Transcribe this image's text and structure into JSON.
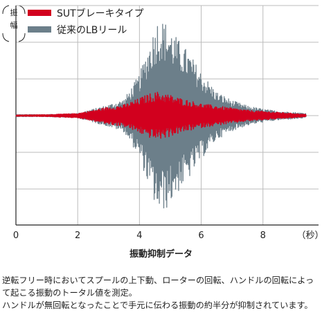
{
  "chart_data": {
    "type": "line",
    "ylabel": "（振幅）",
    "xlabel": "（秒）",
    "xlim": [
      0,
      9.8
    ],
    "xticks": [
      "0",
      "2",
      "4",
      "6",
      "8"
    ],
    "grid": true,
    "legend_position": "top-left",
    "series": [
      {
        "name": "従来のLBリール",
        "color": "#6c7f8a",
        "envelope_t": [
          0,
          1.0,
          2.0,
          2.5,
          3.0,
          3.5,
          4.0,
          4.3,
          4.6,
          4.9,
          5.2,
          5.6,
          6.0,
          6.5,
          7.0,
          7.5,
          8.0,
          8.5,
          9.0,
          9.4
        ],
        "envelope_amplitude": [
          0.01,
          0.01,
          0.02,
          0.06,
          0.1,
          0.15,
          0.38,
          0.65,
          0.9,
          0.85,
          0.72,
          0.58,
          0.4,
          0.22,
          0.14,
          0.09,
          0.06,
          0.04,
          0.03,
          0.02
        ]
      },
      {
        "name": "SUTブレーキタイプ",
        "color": "#d2001e",
        "envelope_t": [
          0,
          1.0,
          2.0,
          2.5,
          3.0,
          3.5,
          4.0,
          4.3,
          4.6,
          4.9,
          5.2,
          5.6,
          6.0,
          6.5,
          7.0,
          7.5,
          8.0,
          8.5,
          9.0,
          9.4
        ],
        "envelope_amplitude": [
          0.005,
          0.008,
          0.02,
          0.05,
          0.08,
          0.1,
          0.16,
          0.2,
          0.22,
          0.2,
          0.17,
          0.14,
          0.11,
          0.09,
          0.07,
          0.05,
          0.04,
          0.03,
          0.02,
          0.01
        ]
      }
    ]
  },
  "caption": "振動抑制データ",
  "description": [
    "逆転フリー時においてスプールの上下動、ローターの回転、ハンドルの回転によって起こる振動のトータル値を測定。",
    "ハンドルが無回転となったことで手元に伝わる振動の約半分が抑制されています。"
  ]
}
